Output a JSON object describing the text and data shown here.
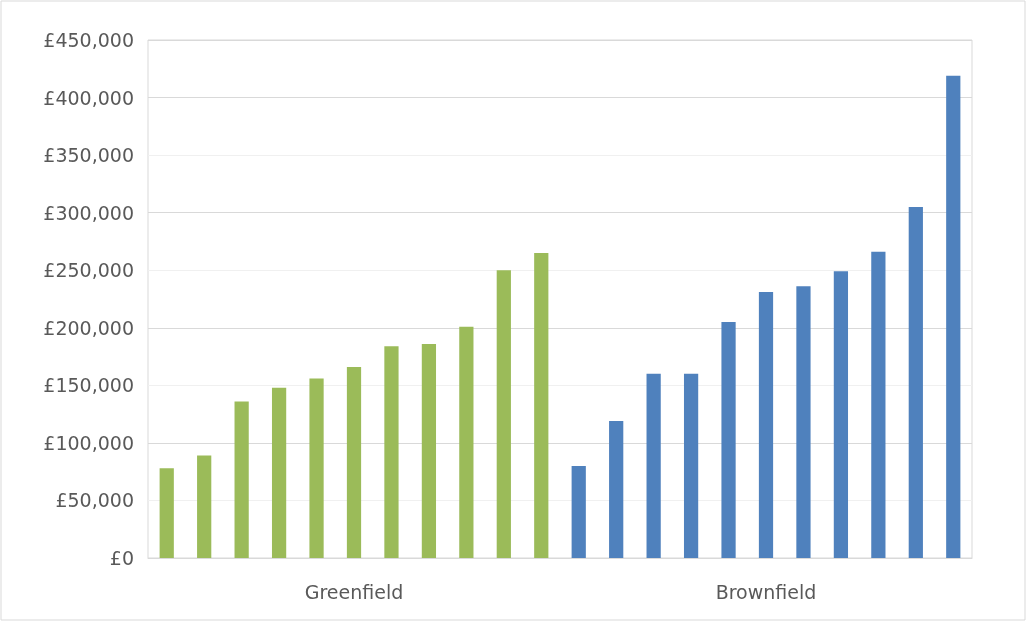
{
  "chart_data": {
    "type": "bar",
    "categories": [
      null,
      null,
      null,
      null,
      null,
      "Greenfield",
      null,
      null,
      null,
      null,
      null,
      null,
      null,
      null,
      null,
      null,
      "Brownfield",
      null,
      null,
      null,
      null,
      null
    ],
    "values": [
      78000,
      89000,
      136000,
      148000,
      156000,
      166000,
      184000,
      186000,
      201000,
      250000,
      265000,
      80000,
      119000,
      160000,
      160000,
      205000,
      231000,
      236000,
      249000,
      266000,
      305000,
      419000
    ],
    "colors": [
      "#9bbb59",
      "#9bbb59",
      "#9bbb59",
      "#9bbb59",
      "#9bbb59",
      "#9bbb59",
      "#9bbb59",
      "#9bbb59",
      "#9bbb59",
      "#9bbb59",
      "#9bbb59",
      "#4f81bd",
      "#4f81bd",
      "#4f81bd",
      "#4f81bd",
      "#4f81bd",
      "#4f81bd",
      "#4f81bd",
      "#4f81bd",
      "#4f81bd",
      "#4f81bd",
      "#4f81bd"
    ],
    "ylim": [
      0,
      450000
    ],
    "yticks": [
      {
        "value": 0,
        "label": "£0"
      },
      {
        "value": 50000,
        "label": "£50,000"
      },
      {
        "value": 100000,
        "label": "£100,000"
      },
      {
        "value": 150000,
        "label": "£150,000"
      },
      {
        "value": 200000,
        "label": "£200,000"
      },
      {
        "value": 250000,
        "label": "£250,000"
      },
      {
        "value": 300000,
        "label": "£300,000"
      },
      {
        "value": 350000,
        "label": "£350,000"
      },
      {
        "value": 400000,
        "label": "£400,000"
      },
      {
        "value": 450000,
        "label": "£450,000"
      }
    ],
    "grid": true
  }
}
